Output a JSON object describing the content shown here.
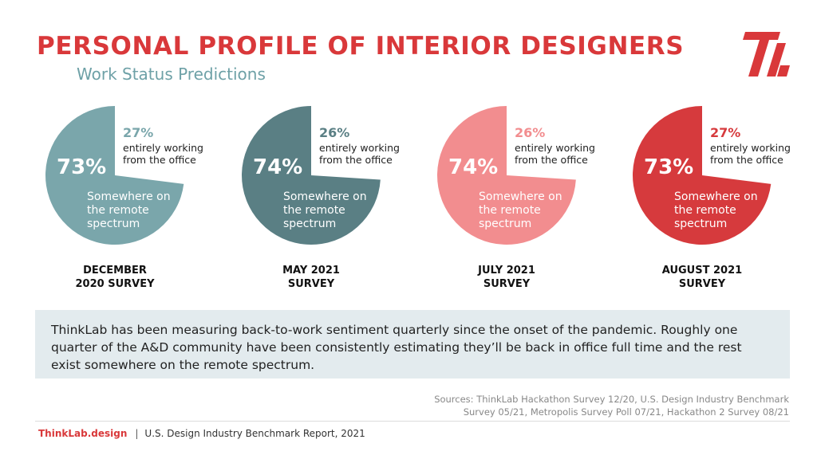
{
  "title": "PERSONAL PROFILE OF INTERIOR DESIGNERS",
  "subtitle": "Work Status Predictions",
  "logo_icon": "thinklab-logo",
  "chart_data": {
    "type": "pie",
    "charts": [
      {
        "survey_line1": "DECEMBER",
        "survey_line2": "2020 SURVEY",
        "color": "#7aa6ab",
        "slices": [
          {
            "label": "Somewhere on the remote spectrum",
            "value": 73,
            "display": "73%"
          },
          {
            "label": "entirely working from the office",
            "value": 27,
            "display": "27%"
          }
        ]
      },
      {
        "survey_line1": "MAY 2021",
        "survey_line2": "SURVEY",
        "color": "#5a7f84",
        "slices": [
          {
            "label": "Somewhere on the remote spectrum",
            "value": 74,
            "display": "74%"
          },
          {
            "label": "entirely working from the office",
            "value": 26,
            "display": "26%"
          }
        ]
      },
      {
        "survey_line1": "JULY 2021",
        "survey_line2": "SURVEY",
        "color": "#f28d8f",
        "slices": [
          {
            "label": "Somewhere on the remote spectrum",
            "value": 74,
            "display": "74%"
          },
          {
            "label": "entirely working from the office",
            "value": 26,
            "display": "26%"
          }
        ]
      },
      {
        "survey_line1": "AUGUST 2021",
        "survey_line2": "SURVEY",
        "color": "#d63a3d",
        "slices": [
          {
            "label": "Somewhere on the remote spectrum",
            "value": 73,
            "display": "73%"
          },
          {
            "label": "entirely working from the office",
            "value": 27,
            "display": "27%"
          }
        ]
      }
    ],
    "remote_lines": [
      "Somewhere on",
      "the remote",
      "spectrum"
    ],
    "office_lines": [
      "entirely working",
      "from the office"
    ]
  },
  "note": "ThinkLab has been measuring back-to-work sentiment quarterly since the onset of the pandemic. Roughly one quarter of the A&D community have been consistently estimating they’ll be back in office full time and the rest exist somewhere on the remote spectrum.",
  "sources": {
    "line1": "Sources: ThinkLab Hackathon Survey 12/20, U.S. Design Industry Benchmark",
    "line2": "Survey 05/21, Metropolis Survey Poll 07/21, Hackathon 2 Survey 08/21"
  },
  "footer": {
    "brand": "ThinkLab.design",
    "separator": "|",
    "report": "U.S. Design Industry Benchmark Report, 2021"
  }
}
